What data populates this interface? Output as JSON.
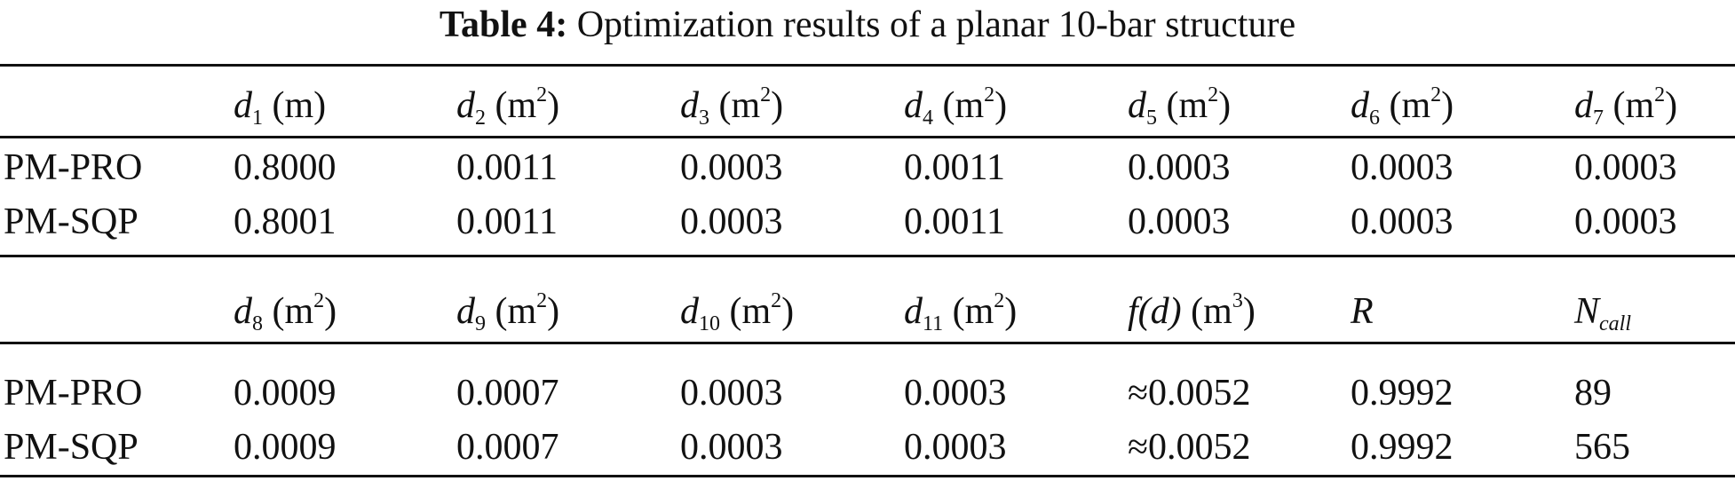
{
  "caption": {
    "label": "Table 4:",
    "text": "Optimization results of a planar 10-bar structure"
  },
  "block1": {
    "header": {
      "c1": {
        "sym": "d",
        "sub": "1",
        "unit_pre": "(m",
        "unit_sup": "",
        "unit_post": ")"
      },
      "c2": {
        "sym": "d",
        "sub": "2",
        "unit_pre": "(m",
        "unit_sup": "2",
        "unit_post": ")"
      },
      "c3": {
        "sym": "d",
        "sub": "3",
        "unit_pre": "(m",
        "unit_sup": "2",
        "unit_post": ")"
      },
      "c4": {
        "sym": "d",
        "sub": "4",
        "unit_pre": "(m",
        "unit_sup": "2",
        "unit_post": ")"
      },
      "c5": {
        "sym": "d",
        "sub": "5",
        "unit_pre": "(m",
        "unit_sup": "2",
        "unit_post": ")"
      },
      "c6": {
        "sym": "d",
        "sub": "6",
        "unit_pre": "(m",
        "unit_sup": "2",
        "unit_post": ")"
      },
      "c7": {
        "sym": "d",
        "sub": "7",
        "unit_pre": "(m",
        "unit_sup": "2",
        "unit_post": ")"
      }
    },
    "rows": [
      {
        "method": "PM-PRO",
        "values": [
          "0.8000",
          "0.0011",
          "0.0003",
          "0.0011",
          "0.0003",
          "0.0003",
          "0.0003"
        ]
      },
      {
        "method": "PM-SQP",
        "values": [
          "0.8001",
          "0.0011",
          "0.0003",
          "0.0011",
          "0.0003",
          "0.0003",
          "0.0003"
        ]
      }
    ]
  },
  "block2": {
    "header": {
      "c1": {
        "sym": "d",
        "sub": "8",
        "unit_pre": "(m",
        "unit_sup": "2",
        "unit_post": ")"
      },
      "c2": {
        "sym": "d",
        "sub": "9",
        "unit_pre": "(m",
        "unit_sup": "2",
        "unit_post": ")"
      },
      "c3": {
        "sym": "d",
        "sub": "10",
        "unit_pre": "(m",
        "unit_sup": "2",
        "unit_post": ")"
      },
      "c4": {
        "sym": "d",
        "sub": "11",
        "unit_pre": "(m",
        "unit_sup": "2",
        "unit_post": ")"
      },
      "c5": {
        "sym": "f",
        "arg": "(d)",
        "unit_pre": "(m",
        "unit_sup": "3",
        "unit_post": ")"
      },
      "c6": {
        "sym": "R"
      },
      "c7": {
        "sym": "N",
        "sub": "call"
      }
    },
    "rows": [
      {
        "method": "PM-PRO",
        "values": [
          "0.0009",
          "0.0007",
          "0.0003",
          "0.0003",
          "≈0.0052",
          "0.9992",
          "89"
        ]
      },
      {
        "method": "PM-SQP",
        "values": [
          "0.0009",
          "0.0007",
          "0.0003",
          "0.0003",
          "≈0.0052",
          "0.9992",
          "565"
        ]
      }
    ]
  }
}
